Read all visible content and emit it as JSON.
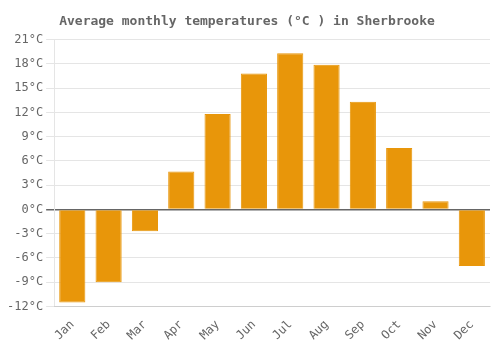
{
  "chart_data": {
    "type": "bar",
    "title": "Average monthly temperatures (°C ) in Sherbrooke",
    "categories": [
      "Jan",
      "Feb",
      "Mar",
      "Apr",
      "May",
      "Jun",
      "Jul",
      "Aug",
      "Sep",
      "Oct",
      "Nov",
      "Dec"
    ],
    "values": [
      -11.5,
      -9.0,
      -2.7,
      4.7,
      11.8,
      16.8,
      19.3,
      17.9,
      13.3,
      7.6,
      1.0,
      -7.0
    ],
    "color": "#E8960A",
    "ylim": [
      -12,
      21
    ],
    "yticks": [
      {
        "value": -12,
        "label": "-12°C"
      },
      {
        "value": -9,
        "label": "-9°C"
      },
      {
        "value": -6,
        "label": "-6°C"
      },
      {
        "value": -3,
        "label": "-3°C"
      },
      {
        "value": 0,
        "label": "0°C"
      },
      {
        "value": 3,
        "label": "3°C"
      },
      {
        "value": 6,
        "label": "6°C"
      },
      {
        "value": 9,
        "label": "9°C"
      },
      {
        "value": 12,
        "label": "12°C"
      },
      {
        "value": 15,
        "label": "15°C"
      },
      {
        "value": 18,
        "label": "18°C"
      },
      {
        "value": 21,
        "label": "21°C"
      }
    ],
    "grid": true
  }
}
